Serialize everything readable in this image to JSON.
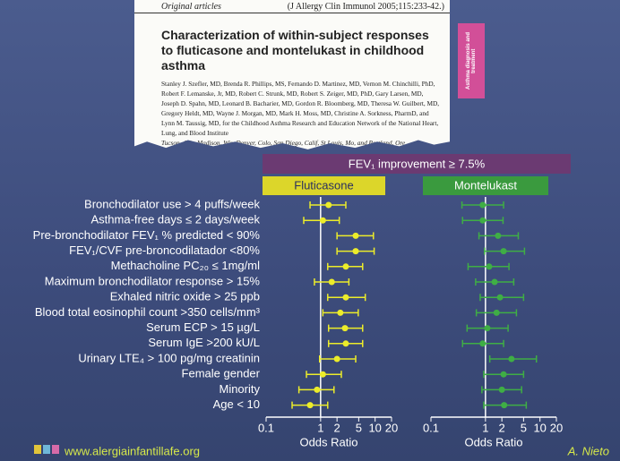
{
  "article": {
    "section": "Original articles",
    "citation": "(J Allergy Clin Immunol 2005;115:233-42.)",
    "title": "Characterization of within-subject responses to fluticasone and montelukast in childhood asthma",
    "authors": "Stanley J. Szefler, MD, Brenda R. Phillips, MS, Fernando D. Martinez, MD, Vernon M. Chinchilli, PhD, Robert F. Lemanske, Jr, MD, Robert C. Strunk, MD, Robert S. Zeiger, MD, PhD, Gary Larsen, MD, Joseph D. Spahn, MD, Leonard B. Bacharier, MD, Gordon R. Bloomberg, MD, Theresa W. Guilbert, MD, Gregory Heldt, MD, Wayne J. Morgan, MD, Mark H. Moss, MD, Christine A. Sorkness, PharmD, and Lynn M. Taussig, MD, for the Childhood Asthma Research and Education Network of the National Heart, Lung, and Blood Institute",
    "locations": "Tucson, Ariz, Madison, Wis, Denver, Colo, San Diego, Calif, St Louis, Mo, and Portland, Ore",
    "tab": "Asthma diagnosis and treatment"
  },
  "header": "FEV₁ improvement ≥ 7.5%",
  "chart_data": [
    {
      "type": "forest",
      "title": "Fluticasone",
      "color": "#ecec2a",
      "title_bg": "#dcd62a",
      "title_color": "#2a3060",
      "categories": [
        "Bronchodilator use > 4 puffs/week",
        "Asthma-free days ≤ 2 days/week",
        "Pre-bronchodilator FEV₁ % predicted < 90%",
        "FEV₁/CVF pre-broncodilatador <80%",
        "Methacholine PC₂₀ ≤ 1mg/ml",
        "Maximum bronchodilator response > 15%",
        "Exhaled nitric oxide > 25 ppb",
        "Blood total eosinophil count >350 cells/mm³",
        "Serum ECP  > 15 µg/L",
        "Serum IgE >200 kU/L",
        "Urinary  LTE₄ > 100 pg/mg creatinin",
        "Female gender",
        "Minority",
        "Age < 10"
      ],
      "values": [
        1.4,
        1.1,
        4.4,
        4.4,
        2.9,
        1.6,
        2.9,
        2.3,
        2.8,
        2.9,
        2.0,
        1.1,
        0.86,
        0.64
      ],
      "lower": [
        0.64,
        0.49,
        2.0,
        2.0,
        1.35,
        0.77,
        1.35,
        1.1,
        1.4,
        1.4,
        0.96,
        0.55,
        0.4,
        0.3
      ],
      "upper": [
        2.9,
        2.2,
        9.3,
        9.6,
        5.9,
        3.3,
        6.6,
        4.9,
        5.9,
        5.9,
        4.4,
        2.4,
        1.76,
        1.35
      ],
      "xlabel": "Odds Ratio",
      "log_x": true,
      "xlim": [
        0.1,
        20
      ],
      "xticks": [
        0.1,
        1,
        2,
        5,
        10,
        20
      ],
      "reference_line": 1
    },
    {
      "type": "forest",
      "title": "Montelukast",
      "color": "#3fae45",
      "title_bg": "#3a9a3e",
      "title_color": "#ffffff",
      "values": [
        0.89,
        0.89,
        1.7,
        2.15,
        1.17,
        1.47,
        1.85,
        1.6,
        1.08,
        0.89,
        3.0,
        2.15,
        2.0,
        2.2
      ],
      "lower": [
        0.37,
        0.38,
        0.76,
        0.96,
        0.48,
        0.66,
        0.8,
        0.68,
        0.46,
        0.38,
        1.2,
        0.93,
        0.86,
        0.93
      ],
      "upper": [
        2.15,
        2.1,
        4.0,
        5.2,
        2.7,
        3.3,
        5.0,
        3.7,
        2.6,
        2.15,
        8.6,
        5.0,
        4.6,
        5.6
      ],
      "xlabel": "Odds Ratio",
      "log_x": true,
      "xlim": [
        0.1,
        20
      ],
      "xticks": [
        0.1,
        1,
        2,
        5,
        10,
        20
      ],
      "reference_line": 1
    }
  ],
  "footer": {
    "url": "www.alergiainfantillafe.org",
    "author": "A. Nieto"
  }
}
